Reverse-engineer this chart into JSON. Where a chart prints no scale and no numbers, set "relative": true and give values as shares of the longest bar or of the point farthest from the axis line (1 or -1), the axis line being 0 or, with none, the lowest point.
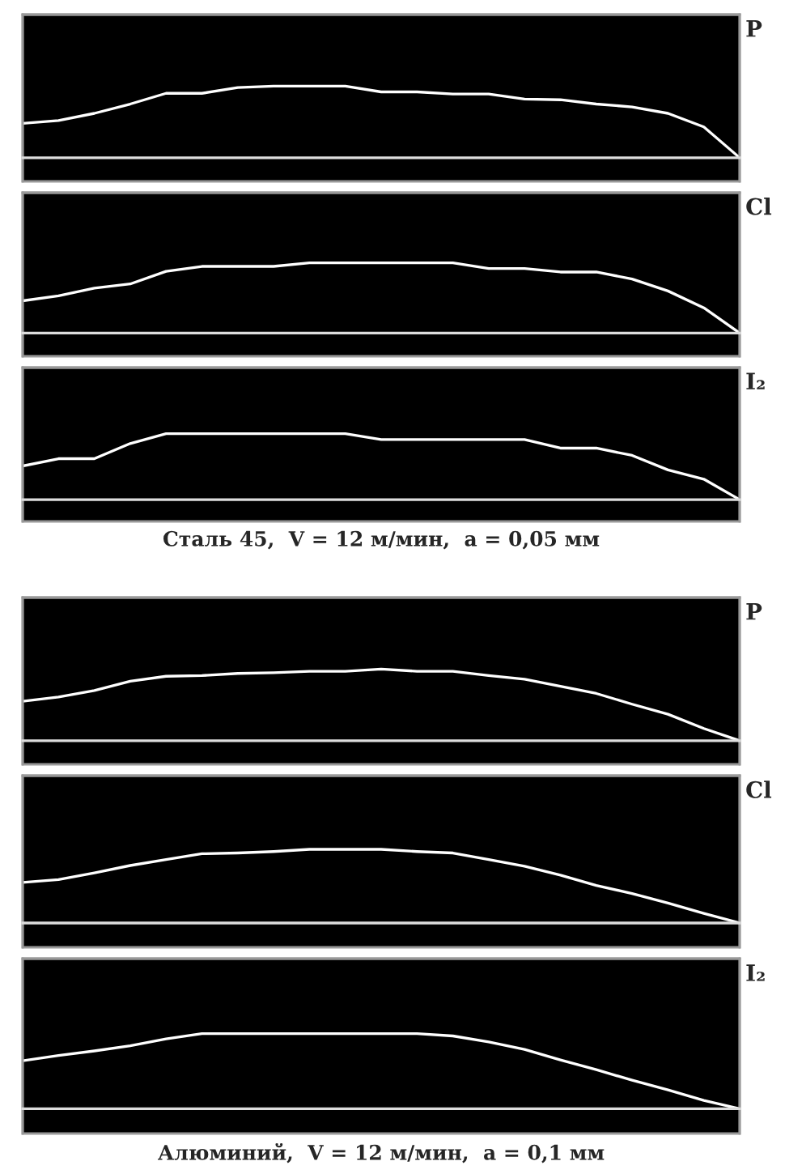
{
  "chart_data": [
    {
      "type": "line",
      "title": "P",
      "relative": true,
      "categories": [
        null,
        null,
        null,
        null,
        null,
        null,
        null,
        null,
        null,
        null,
        null,
        null,
        null,
        null,
        null,
        null,
        null,
        null,
        null,
        null,
        null
      ],
      "series": [
        {
          "color": "#ffffff",
          "values": [
            0.48,
            0.52,
            0.62,
            0.75,
            0.9,
            0.9,
            0.98,
            1,
            1,
            1,
            0.92,
            0.92,
            0.89,
            0.89,
            0.82,
            0.81,
            0.75,
            0.71,
            0.62,
            0.43,
            0
          ]
        }
      ]
    },
    {
      "type": "line",
      "title": "Cl",
      "relative": true,
      "categories": [
        null,
        null,
        null,
        null,
        null,
        null,
        null,
        null,
        null,
        null,
        null,
        null,
        null,
        null,
        null,
        null,
        null,
        null,
        null,
        null,
        null
      ],
      "series": [
        {
          "color": "#ffffff",
          "values": [
            0.46,
            0.53,
            0.64,
            0.7,
            0.88,
            0.95,
            0.95,
            0.95,
            1,
            1,
            1,
            1,
            1,
            0.92,
            0.92,
            0.87,
            0.87,
            0.77,
            0.6,
            0.36,
            0
          ]
        }
      ]
    },
    {
      "type": "line",
      "title": "I₂",
      "relative": true,
      "annotations": [
        "Сталь 45,  V = 12 м/мин,  a = 0,05 мм"
      ],
      "categories": [
        null,
        null,
        null,
        null,
        null,
        null,
        null,
        null,
        null,
        null,
        null,
        null,
        null,
        null,
        null,
        null,
        null,
        null,
        null,
        null,
        null
      ],
      "series": [
        {
          "color": "#ffffff",
          "values": [
            0.51,
            0.62,
            0.62,
            0.85,
            1,
            1,
            1,
            1,
            1,
            1,
            0.91,
            0.91,
            0.91,
            0.91,
            0.91,
            0.78,
            0.78,
            0.67,
            0.45,
            0.31,
            0
          ]
        }
      ]
    },
    {
      "type": "line",
      "title": "P",
      "relative": true,
      "categories": [
        null,
        null,
        null,
        null,
        null,
        null,
        null,
        null,
        null,
        null,
        null,
        null,
        null,
        null,
        null,
        null,
        null,
        null,
        null,
        null,
        null
      ],
      "series": [
        {
          "color": "#ffffff",
          "values": [
            0.55,
            0.61,
            0.7,
            0.83,
            0.9,
            0.91,
            0.94,
            0.95,
            0.97,
            0.97,
            1,
            0.97,
            0.97,
            0.91,
            0.86,
            0.76,
            0.66,
            0.51,
            0.37,
            0.17,
            0
          ]
        }
      ]
    },
    {
      "type": "line",
      "title": "Cl",
      "relative": true,
      "categories": [
        null,
        null,
        null,
        null,
        null,
        null,
        null,
        null,
        null,
        null,
        null,
        null,
        null,
        null,
        null,
        null,
        null,
        null,
        null,
        null,
        null
      ],
      "series": [
        {
          "color": "#ffffff",
          "values": [
            0.55,
            0.59,
            0.68,
            0.78,
            0.86,
            0.94,
            0.95,
            0.97,
            1,
            1,
            1,
            0.97,
            0.95,
            0.86,
            0.77,
            0.65,
            0.51,
            0.4,
            0.27,
            0.13,
            0
          ]
        }
      ]
    },
    {
      "type": "line",
      "title": "I₂",
      "relative": true,
      "annotations": [
        "Алюминий,  V = 12 м/мин,  a = 0,1 мм"
      ],
      "categories": [
        null,
        null,
        null,
        null,
        null,
        null,
        null,
        null,
        null,
        null,
        null,
        null,
        null,
        null,
        null,
        null,
        null,
        null,
        null,
        null,
        null
      ],
      "series": [
        {
          "color": "#ffffff",
          "values": [
            0.64,
            0.71,
            0.77,
            0.84,
            0.93,
            1,
            1,
            1,
            1,
            1,
            1,
            1,
            0.97,
            0.89,
            0.79,
            0.65,
            0.52,
            0.38,
            0.25,
            0.11,
            0
          ]
        }
      ]
    }
  ]
}
